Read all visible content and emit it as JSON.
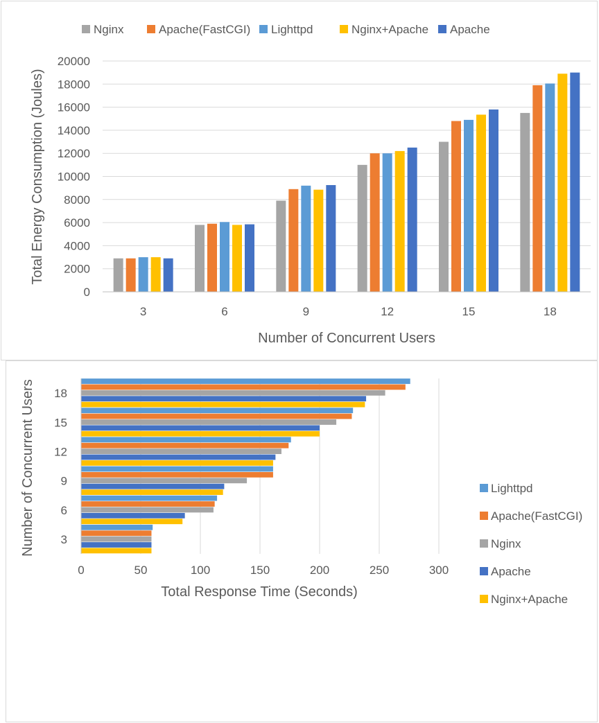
{
  "chart_data": [
    {
      "type": "bar",
      "orientation": "vertical",
      "title": "",
      "xlabel": "Number of Concurrent Users",
      "ylabel": "Total Energy Consumption (Joules)",
      "categories": [
        "3",
        "6",
        "9",
        "12",
        "15",
        "18"
      ],
      "ylim": [
        0,
        20000
      ],
      "yticks": [
        "0",
        "2000",
        "4000",
        "6000",
        "8000",
        "10000",
        "12000",
        "14000",
        "16000",
        "18000",
        "20000"
      ],
      "grid": true,
      "legend_position": "top",
      "series": [
        {
          "name": "Nginx",
          "color": "#a5a5a5",
          "values": [
            2900,
            5800,
            7900,
            11000,
            13000,
            15500
          ]
        },
        {
          "name": "Apache(FastCGI)",
          "color": "#ed7d31",
          "values": [
            2900,
            5900,
            8900,
            12000,
            14800,
            17900
          ]
        },
        {
          "name": "Lighttpd",
          "color": "#5b9bd5",
          "values": [
            3000,
            6050,
            9200,
            12000,
            14900,
            18050
          ]
        },
        {
          "name": "Nginx+Apache",
          "color": "#ffc000",
          "values": [
            3000,
            5800,
            8850,
            12200,
            15350,
            18900
          ]
        },
        {
          "name": "Apache",
          "color": "#4472c4",
          "values": [
            2900,
            5850,
            9250,
            12500,
            15800,
            19000
          ]
        }
      ]
    },
    {
      "type": "bar",
      "orientation": "horizontal",
      "title": "",
      "xlabel": "Total Response Time (Seconds)",
      "ylabel": "Number of Concurrent Users",
      "categories": [
        "3",
        "6",
        "9",
        "12",
        "15",
        "18"
      ],
      "xlim": [
        0,
        300
      ],
      "xticks": [
        "0",
        "50",
        "100",
        "150",
        "200",
        "250",
        "300"
      ],
      "grid": true,
      "legend_position": "right",
      "series": [
        {
          "name": "Lighttpd",
          "color": "#5b9bd5",
          "values": [
            60,
            114,
            161,
            176,
            228,
            276
          ]
        },
        {
          "name": "Apache(FastCGI)",
          "color": "#ed7d31",
          "values": [
            59,
            112,
            161,
            174,
            227,
            272
          ]
        },
        {
          "name": "Nginx",
          "color": "#a5a5a5",
          "values": [
            59,
            111,
            139,
            168,
            214,
            255
          ]
        },
        {
          "name": "Apache",
          "color": "#4472c4",
          "values": [
            59,
            87,
            120,
            163,
            200,
            239
          ]
        },
        {
          "name": "Nginx+Apache",
          "color": "#ffc000",
          "values": [
            59,
            85,
            119,
            161,
            200,
            238
          ]
        }
      ]
    }
  ]
}
